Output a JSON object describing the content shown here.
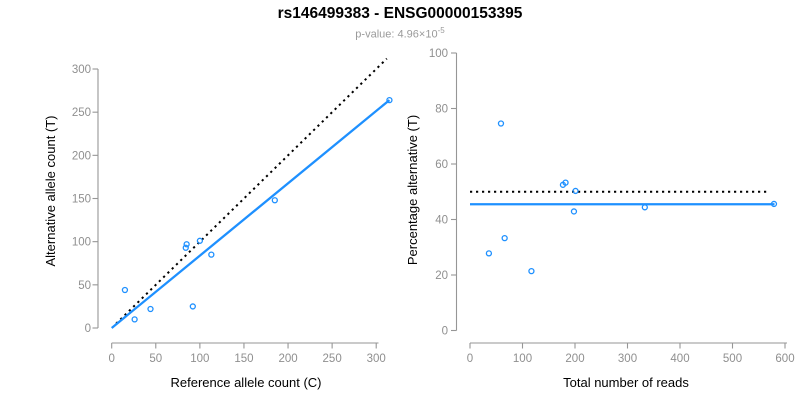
{
  "header": {
    "title": "rs146499383 - ENSG00000153395",
    "subtitle_base": "p-value: 4.96×10",
    "subtitle_exponent": "-5"
  },
  "colors": {
    "accent_blue": "#1E90FF",
    "dotted_line": "#000000",
    "axis_gray": "#969696",
    "tick_label_gray": "#8f8f8f",
    "axis_title_color": "#000000",
    "subtitle_gray": "#9a9a9a"
  },
  "chart_data": [
    {
      "type": "scatter",
      "title": "rs146499383 - ENSG00000153395",
      "subtitle": "p-value: 4.96×10^-5",
      "xlabel": "Reference allele count (C)",
      "ylabel": "Alternative allele count (T)",
      "xlim": [
        0,
        316
      ],
      "ylim": [
        0,
        316
      ],
      "xticks": [
        0,
        50,
        100,
        150,
        200,
        250,
        300
      ],
      "yticks": [
        0,
        50,
        100,
        150,
        200,
        250,
        300
      ],
      "grid": false,
      "legend": false,
      "point_style": "open-circle",
      "points": [
        [
          15,
          44
        ],
        [
          26,
          10
        ],
        [
          44,
          22
        ],
        [
          84,
          93
        ],
        [
          85,
          97
        ],
        [
          92,
          25
        ],
        [
          100,
          101
        ],
        [
          113,
          85
        ],
        [
          185,
          148
        ],
        [
          315,
          264
        ]
      ],
      "lines": [
        {
          "name": "identity-line-dotted",
          "style": "dotted",
          "color_key": "dotted_line",
          "x1": 5,
          "y1": 5,
          "x2": 312,
          "y2": 312
        },
        {
          "name": "regression-line",
          "style": "solid",
          "color_key": "accent_blue",
          "x1": 0,
          "y1": 0,
          "x2": 315,
          "y2": 264
        }
      ]
    },
    {
      "type": "scatter",
      "xlabel": "Total number of reads",
      "ylabel": "Percentage alternative (T)",
      "xlim": [
        0,
        600
      ],
      "ylim": [
        0,
        100
      ],
      "xticks": [
        0,
        100,
        200,
        300,
        400,
        500,
        600
      ],
      "yticks": [
        0,
        20,
        40,
        60,
        80,
        100
      ],
      "grid": false,
      "legend": false,
      "point_style": "open-circle",
      "points": [
        [
          59,
          74.6
        ],
        [
          36,
          27.8
        ],
        [
          66,
          33.3
        ],
        [
          117,
          21.4
        ],
        [
          177,
          52.5
        ],
        [
          182,
          53.3
        ],
        [
          201,
          50.3
        ],
        [
          198,
          42.9
        ],
        [
          333,
          44.4
        ],
        [
          579,
          45.6
        ]
      ],
      "lines": [
        {
          "name": "expected-50pct-line-dotted",
          "style": "dotted",
          "color_key": "dotted_line",
          "x1": 0,
          "y1": 50,
          "x2": 568,
          "y2": 50
        },
        {
          "name": "fitted-percentage-line",
          "style": "solid",
          "color_key": "accent_blue",
          "x1": 0,
          "y1": 45.5,
          "x2": 580,
          "y2": 45.5
        }
      ]
    }
  ]
}
